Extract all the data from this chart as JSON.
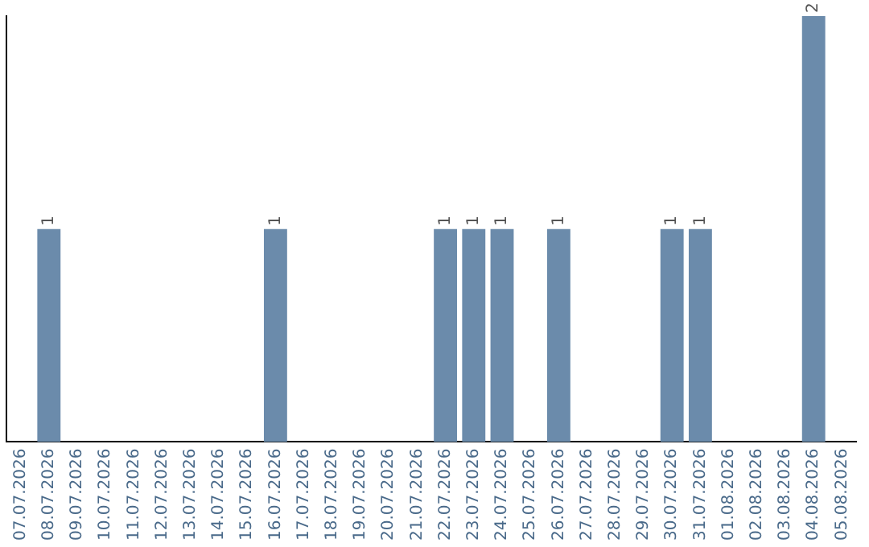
{
  "chart_data": {
    "type": "bar",
    "categories": [
      "07.07.2026",
      "08.07.2026",
      "09.07.2026",
      "10.07.2026",
      "11.07.2026",
      "12.07.2026",
      "13.07.2026",
      "14.07.2026",
      "15.07.2026",
      "16.07.2026",
      "17.07.2026",
      "18.07.2026",
      "19.07.2026",
      "20.07.2026",
      "21.07.2026",
      "22.07.2026",
      "23.07.2026",
      "24.07.2026",
      "25.07.2026",
      "26.07.2026",
      "27.07.2026",
      "28.07.2026",
      "29.07.2026",
      "30.07.2026",
      "31.07.2026",
      "01.08.2026",
      "02.08.2026",
      "03.08.2026",
      "04.08.2026",
      "05.08.2026"
    ],
    "values": [
      0,
      1,
      0,
      0,
      0,
      0,
      0,
      0,
      0,
      1,
      0,
      0,
      0,
      0,
      0,
      1,
      1,
      1,
      0,
      1,
      0,
      0,
      0,
      1,
      1,
      0,
      0,
      0,
      2,
      0
    ],
    "value_labels": [
      null,
      "1",
      null,
      null,
      null,
      null,
      null,
      null,
      null,
      "1",
      null,
      null,
      null,
      null,
      null,
      "1",
      "1",
      "1",
      null,
      "1",
      null,
      null,
      null,
      "1",
      "1",
      null,
      null,
      null,
      "2",
      null
    ],
    "color": "#6b8bab",
    "ylim": [
      0,
      2
    ],
    "tick_labels": "x",
    "grid": false,
    "legend": false
  }
}
